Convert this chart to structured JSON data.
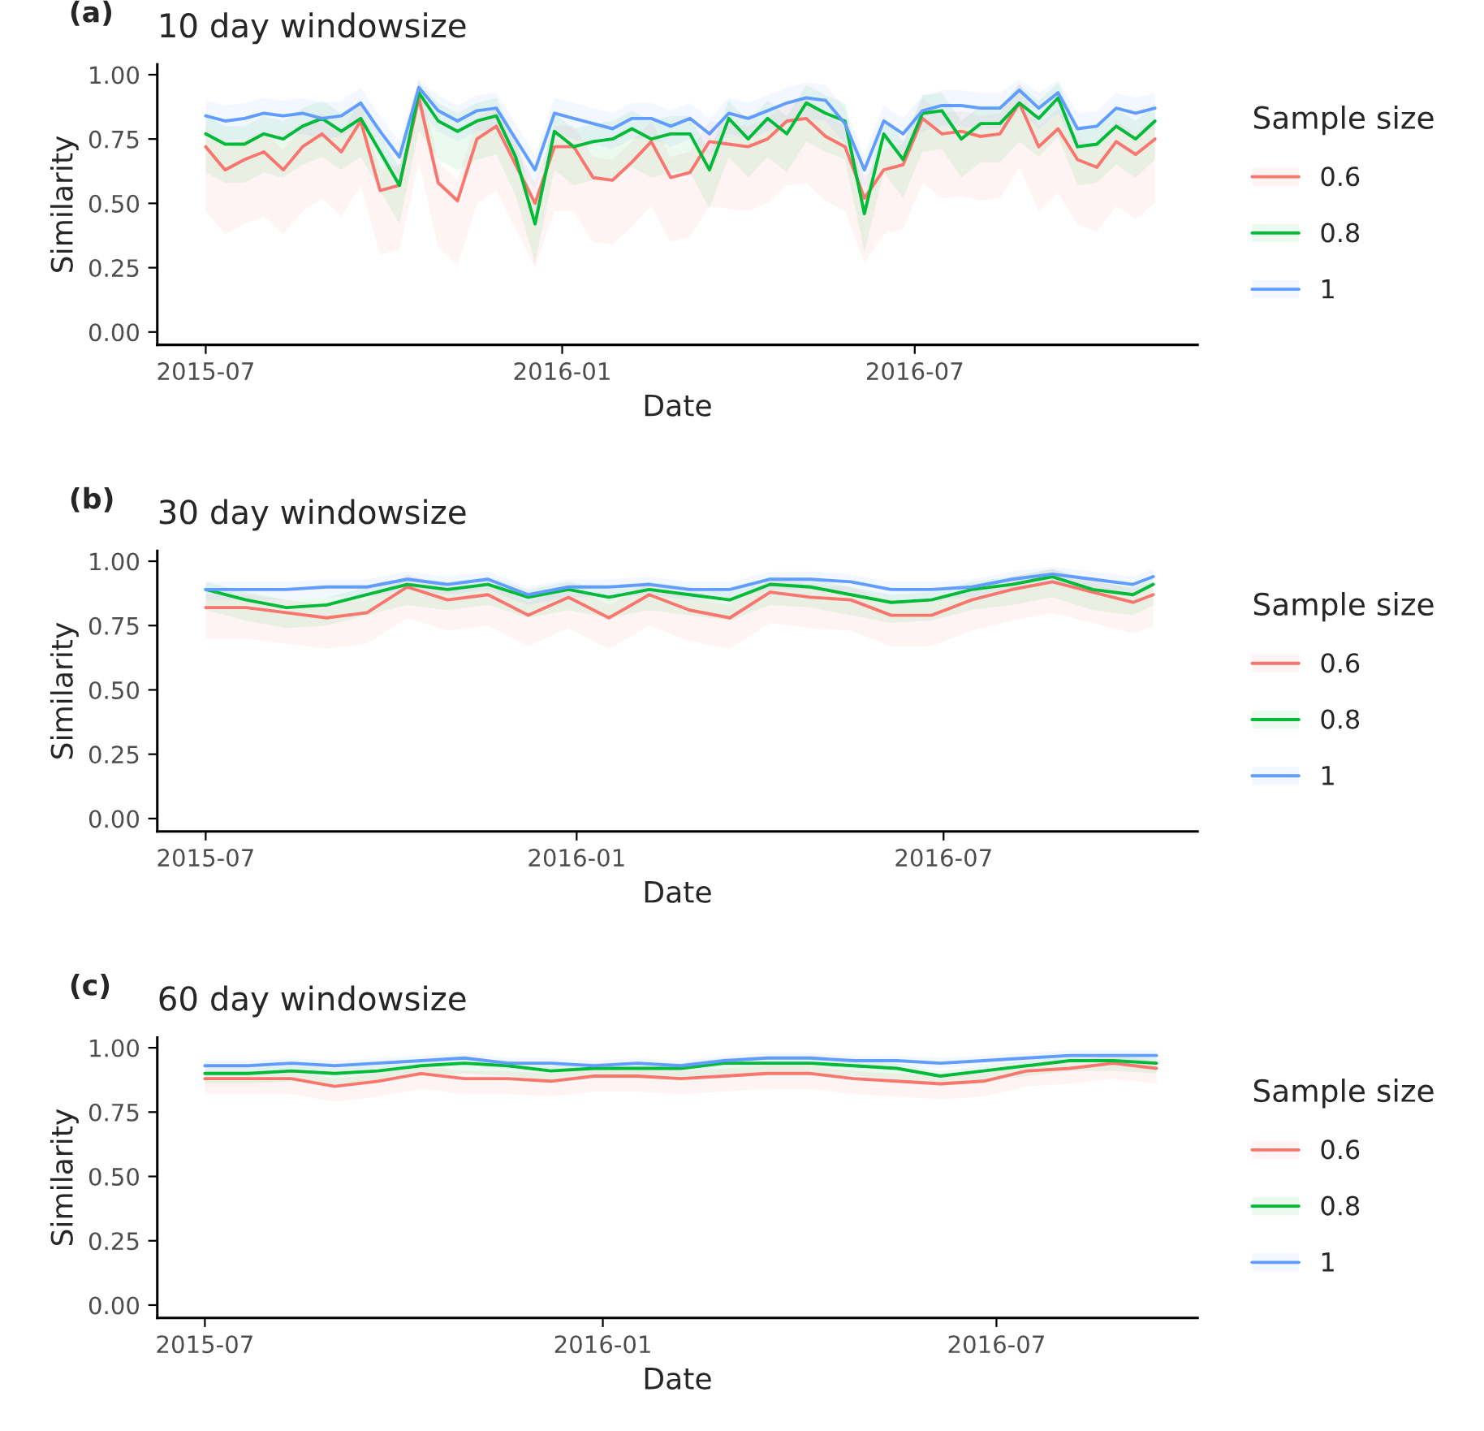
{
  "chart_data": [
    {
      "type": "line",
      "title": "10 day windowsize",
      "annotations": [
        "(a)"
      ],
      "xlabel": "Date",
      "ylabel": "Similarity",
      "legend_title": "Sample size",
      "legend": "right",
      "xlim": [
        "2015-06-06",
        "2016-11-24"
      ],
      "xticks": [
        "2015-07",
        "2016-01",
        "2016-07"
      ],
      "ylim": [
        -0.05,
        1.04
      ],
      "yticks": [
        {
          "value": 0,
          "label": "0.00"
        },
        {
          "value": 0.25,
          "label": "0.25"
        },
        {
          "value": 0.5,
          "label": "0.50"
        },
        {
          "value": 0.75,
          "label": "0.75"
        },
        {
          "value": 1,
          "label": "1.00"
        }
      ],
      "x": [
        "2015-07-01",
        "2015-07-11",
        "2015-07-21",
        "2015-07-31",
        "2015-08-10",
        "2015-08-20",
        "2015-08-30",
        "2015-09-09",
        "2015-09-19",
        "2015-09-29",
        "2015-10-09",
        "2015-10-19",
        "2015-10-29",
        "2015-11-08",
        "2015-11-18",
        "2015-11-28",
        "2015-12-08",
        "2015-12-18",
        "2015-12-28",
        "2016-01-07",
        "2016-01-17",
        "2016-01-27",
        "2016-02-06",
        "2016-02-16",
        "2016-02-26",
        "2016-03-07",
        "2016-03-17",
        "2016-03-27",
        "2016-04-06",
        "2016-04-16",
        "2016-04-26",
        "2016-05-06",
        "2016-05-16",
        "2016-05-26",
        "2016-06-05",
        "2016-06-15",
        "2016-06-25",
        "2016-07-05",
        "2016-07-15",
        "2016-07-25",
        "2016-08-04",
        "2016-08-14",
        "2016-08-24",
        "2016-09-03",
        "2016-09-13",
        "2016-09-23",
        "2016-10-03",
        "2016-10-13",
        "2016-10-23",
        "2016-11-02"
      ],
      "series": [
        {
          "name": "0.6",
          "color": "#f8766d",
          "values": [
            0.72,
            0.63,
            0.67,
            0.7,
            0.63,
            0.72,
            0.77,
            0.7,
            0.82,
            0.55,
            0.57,
            0.91,
            0.58,
            0.51,
            0.75,
            0.8,
            0.65,
            0.5,
            0.72,
            0.72,
            0.6,
            0.59,
            0.66,
            0.74,
            0.6,
            0.62,
            0.74,
            0.73,
            0.72,
            0.75,
            0.82,
            0.83,
            0.76,
            0.72,
            0.52,
            0.63,
            0.65,
            0.83,
            0.77,
            0.78,
            0.76,
            0.77,
            0.89,
            0.72,
            0.79,
            0.67,
            0.64,
            0.74,
            0.69,
            0.75
          ],
          "upper": [
            0.8,
            0.71,
            0.75,
            0.78,
            0.71,
            0.8,
            0.85,
            0.78,
            0.9,
            0.63,
            0.65,
            0.99,
            0.66,
            0.59,
            0.83,
            0.88,
            0.73,
            0.58,
            0.8,
            0.8,
            0.68,
            0.67,
            0.74,
            0.82,
            0.68,
            0.7,
            0.82,
            0.81,
            0.8,
            0.83,
            0.9,
            0.91,
            0.84,
            0.8,
            0.6,
            0.71,
            0.73,
            0.91,
            0.85,
            0.86,
            0.84,
            0.85,
            0.97,
            0.8,
            0.87,
            0.75,
            0.72,
            0.82,
            0.77,
            0.83
          ],
          "lower": [
            0.47,
            0.38,
            0.42,
            0.45,
            0.38,
            0.47,
            0.52,
            0.45,
            0.57,
            0.3,
            0.32,
            0.66,
            0.33,
            0.26,
            0.5,
            0.55,
            0.4,
            0.25,
            0.47,
            0.47,
            0.35,
            0.34,
            0.41,
            0.49,
            0.35,
            0.37,
            0.49,
            0.48,
            0.47,
            0.5,
            0.57,
            0.58,
            0.51,
            0.47,
            0.27,
            0.38,
            0.4,
            0.58,
            0.52,
            0.53,
            0.51,
            0.52,
            0.64,
            0.47,
            0.54,
            0.42,
            0.39,
            0.49,
            0.44,
            0.5
          ]
        },
        {
          "name": "0.8",
          "color": "#00ba38",
          "values": [
            0.77,
            0.73,
            0.73,
            0.77,
            0.75,
            0.8,
            0.83,
            0.78,
            0.83,
            0.7,
            0.57,
            0.93,
            0.82,
            0.78,
            0.82,
            0.84,
            0.68,
            0.42,
            0.78,
            0.72,
            0.74,
            0.75,
            0.79,
            0.75,
            0.77,
            0.77,
            0.63,
            0.83,
            0.75,
            0.83,
            0.77,
            0.89,
            0.85,
            0.82,
            0.46,
            0.77,
            0.67,
            0.85,
            0.86,
            0.75,
            0.81,
            0.81,
            0.89,
            0.83,
            0.91,
            0.72,
            0.73,
            0.8,
            0.75,
            0.82
          ],
          "upper": [
            0.84,
            0.8,
            0.8,
            0.84,
            0.82,
            0.87,
            0.9,
            0.85,
            0.9,
            0.77,
            0.64,
            0.97,
            0.89,
            0.85,
            0.89,
            0.91,
            0.75,
            0.49,
            0.85,
            0.79,
            0.81,
            0.82,
            0.86,
            0.82,
            0.84,
            0.84,
            0.7,
            0.9,
            0.82,
            0.9,
            0.84,
            0.96,
            0.92,
            0.89,
            0.53,
            0.84,
            0.74,
            0.92,
            0.93,
            0.82,
            0.88,
            0.88,
            0.96,
            0.9,
            0.97,
            0.79,
            0.8,
            0.87,
            0.82,
            0.89
          ],
          "lower": [
            0.62,
            0.58,
            0.58,
            0.62,
            0.6,
            0.65,
            0.68,
            0.63,
            0.68,
            0.55,
            0.42,
            0.78,
            0.67,
            0.63,
            0.67,
            0.69,
            0.53,
            0.27,
            0.63,
            0.57,
            0.59,
            0.6,
            0.64,
            0.6,
            0.62,
            0.62,
            0.48,
            0.68,
            0.6,
            0.68,
            0.62,
            0.74,
            0.7,
            0.67,
            0.31,
            0.62,
            0.52,
            0.7,
            0.71,
            0.6,
            0.66,
            0.66,
            0.74,
            0.68,
            0.76,
            0.57,
            0.58,
            0.65,
            0.6,
            0.67
          ]
        },
        {
          "name": "1",
          "color": "#619cff",
          "values": [
            0.84,
            0.82,
            0.83,
            0.85,
            0.84,
            0.85,
            0.83,
            0.84,
            0.89,
            0.78,
            0.68,
            0.95,
            0.86,
            0.82,
            0.86,
            0.87,
            0.75,
            0.63,
            0.85,
            0.83,
            0.81,
            0.79,
            0.83,
            0.83,
            0.8,
            0.83,
            0.77,
            0.85,
            0.83,
            0.86,
            0.89,
            0.91,
            0.9,
            0.81,
            0.63,
            0.82,
            0.77,
            0.86,
            0.88,
            0.88,
            0.87,
            0.87,
            0.94,
            0.87,
            0.93,
            0.79,
            0.8,
            0.87,
            0.85,
            0.87
          ],
          "upper": [
            0.9,
            0.88,
            0.89,
            0.91,
            0.9,
            0.91,
            0.89,
            0.9,
            0.95,
            0.84,
            0.74,
            0.98,
            0.92,
            0.88,
            0.92,
            0.93,
            0.81,
            0.69,
            0.91,
            0.89,
            0.87,
            0.85,
            0.89,
            0.89,
            0.86,
            0.89,
            0.83,
            0.91,
            0.89,
            0.92,
            0.95,
            0.97,
            0.96,
            0.87,
            0.69,
            0.88,
            0.83,
            0.92,
            0.94,
            0.94,
            0.93,
            0.93,
            0.98,
            0.93,
            0.98,
            0.85,
            0.86,
            0.93,
            0.91,
            0.93
          ],
          "lower": [
            0.76,
            0.74,
            0.75,
            0.77,
            0.76,
            0.77,
            0.75,
            0.76,
            0.81,
            0.7,
            0.6,
            0.87,
            0.78,
            0.74,
            0.78,
            0.79,
            0.67,
            0.55,
            0.77,
            0.75,
            0.73,
            0.71,
            0.75,
            0.75,
            0.72,
            0.75,
            0.69,
            0.77,
            0.75,
            0.78,
            0.81,
            0.83,
            0.82,
            0.73,
            0.55,
            0.74,
            0.69,
            0.78,
            0.8,
            0.8,
            0.79,
            0.79,
            0.86,
            0.79,
            0.85,
            0.71,
            0.72,
            0.79,
            0.77,
            0.79
          ]
        }
      ]
    },
    {
      "type": "line",
      "title": "30 day windowsize",
      "annotations": [
        "(b)"
      ],
      "xlabel": "Date",
      "ylabel": "Similarity",
      "legend_title": "Sample size",
      "legend": "right",
      "xlim": [
        "2015-06-07",
        "2016-11-04"
      ],
      "xticks": [
        "2015-07",
        "2016-01",
        "2016-07"
      ],
      "ylim": [
        -0.05,
        1.04
      ],
      "yticks": [
        {
          "value": 0,
          "label": "0.00"
        },
        {
          "value": 0.25,
          "label": "0.25"
        },
        {
          "value": 0.5,
          "label": "0.50"
        },
        {
          "value": 0.75,
          "label": "0.75"
        },
        {
          "value": 1,
          "label": "1.00"
        }
      ],
      "x": [
        "2015-07-01",
        "2015-07-21",
        "2015-08-10",
        "2015-08-30",
        "2015-09-19",
        "2015-10-09",
        "2015-10-29",
        "2015-11-18",
        "2015-12-08",
        "2015-12-28",
        "2016-01-17",
        "2016-02-06",
        "2016-02-26",
        "2016-03-17",
        "2016-04-06",
        "2016-04-26",
        "2016-05-16",
        "2016-06-05",
        "2016-06-25",
        "2016-07-15",
        "2016-08-04",
        "2016-08-24",
        "2016-09-13",
        "2016-10-03",
        "2016-10-13"
      ],
      "series": [
        {
          "name": "0.6",
          "color": "#f8766d",
          "values": [
            0.82,
            0.82,
            0.8,
            0.78,
            0.8,
            0.9,
            0.85,
            0.87,
            0.79,
            0.86,
            0.78,
            0.87,
            0.81,
            0.78,
            0.88,
            0.86,
            0.85,
            0.79,
            0.79,
            0.85,
            0.89,
            0.92,
            0.88,
            0.84,
            0.87
          ],
          "upper": [
            0.87,
            0.87,
            0.85,
            0.83,
            0.85,
            0.95,
            0.9,
            0.92,
            0.84,
            0.91,
            0.83,
            0.92,
            0.86,
            0.83,
            0.93,
            0.91,
            0.9,
            0.84,
            0.84,
            0.9,
            0.94,
            0.97,
            0.93,
            0.89,
            0.92
          ],
          "lower": [
            0.7,
            0.7,
            0.68,
            0.66,
            0.68,
            0.78,
            0.73,
            0.75,
            0.67,
            0.74,
            0.66,
            0.75,
            0.69,
            0.66,
            0.76,
            0.74,
            0.73,
            0.67,
            0.67,
            0.73,
            0.77,
            0.8,
            0.76,
            0.72,
            0.75
          ]
        },
        {
          "name": "0.8",
          "color": "#00ba38",
          "values": [
            0.89,
            0.85,
            0.82,
            0.83,
            0.87,
            0.91,
            0.89,
            0.91,
            0.86,
            0.89,
            0.86,
            0.89,
            0.87,
            0.85,
            0.91,
            0.9,
            0.87,
            0.84,
            0.85,
            0.89,
            0.91,
            0.94,
            0.89,
            0.87,
            0.91
          ],
          "upper": [
            0.92,
            0.88,
            0.85,
            0.86,
            0.9,
            0.94,
            0.92,
            0.94,
            0.89,
            0.92,
            0.89,
            0.92,
            0.9,
            0.88,
            0.94,
            0.93,
            0.9,
            0.87,
            0.88,
            0.92,
            0.94,
            0.97,
            0.92,
            0.9,
            0.94
          ],
          "lower": [
            0.81,
            0.77,
            0.74,
            0.75,
            0.79,
            0.83,
            0.81,
            0.83,
            0.78,
            0.81,
            0.78,
            0.81,
            0.79,
            0.77,
            0.83,
            0.82,
            0.79,
            0.76,
            0.77,
            0.81,
            0.83,
            0.86,
            0.81,
            0.79,
            0.83
          ]
        },
        {
          "name": "1",
          "color": "#619cff",
          "values": [
            0.89,
            0.89,
            0.89,
            0.9,
            0.9,
            0.93,
            0.91,
            0.93,
            0.87,
            0.9,
            0.9,
            0.91,
            0.89,
            0.89,
            0.93,
            0.93,
            0.92,
            0.89,
            0.89,
            0.9,
            0.93,
            0.95,
            0.93,
            0.91,
            0.94
          ],
          "upper": [
            0.92,
            0.92,
            0.92,
            0.93,
            0.93,
            0.96,
            0.94,
            0.96,
            0.9,
            0.93,
            0.93,
            0.94,
            0.92,
            0.92,
            0.96,
            0.96,
            0.95,
            0.92,
            0.92,
            0.93,
            0.96,
            0.98,
            0.96,
            0.94,
            0.97
          ],
          "lower": [
            0.85,
            0.85,
            0.85,
            0.86,
            0.86,
            0.89,
            0.87,
            0.89,
            0.83,
            0.86,
            0.86,
            0.87,
            0.85,
            0.85,
            0.89,
            0.89,
            0.88,
            0.85,
            0.85,
            0.86,
            0.89,
            0.91,
            0.89,
            0.87,
            0.9
          ]
        }
      ]
    },
    {
      "type": "line",
      "title": "60 day windowsize",
      "annotations": [
        "(c)"
      ],
      "xlabel": "Date",
      "ylabel": "Similarity",
      "legend_title": "Sample size",
      "legend": "right",
      "xlim": [
        "2015-06-09",
        "2016-10-02"
      ],
      "xticks": [
        "2015-07",
        "2016-01",
        "2016-07"
      ],
      "ylim": [
        -0.05,
        1.04
      ],
      "yticks": [
        {
          "value": 0,
          "label": "0.00"
        },
        {
          "value": 0.25,
          "label": "0.25"
        },
        {
          "value": 0.5,
          "label": "0.50"
        },
        {
          "value": 0.75,
          "label": "0.75"
        },
        {
          "value": 1,
          "label": "1.00"
        }
      ],
      "x": [
        "2015-07-01",
        "2015-07-21",
        "2015-08-10",
        "2015-08-30",
        "2015-09-19",
        "2015-10-09",
        "2015-10-29",
        "2015-11-18",
        "2015-12-08",
        "2015-12-28",
        "2016-01-17",
        "2016-02-06",
        "2016-02-26",
        "2016-03-17",
        "2016-04-06",
        "2016-04-26",
        "2016-05-16",
        "2016-06-05",
        "2016-06-25",
        "2016-07-15",
        "2016-08-04",
        "2016-08-24",
        "2016-09-13"
      ],
      "series": [
        {
          "name": "0.6",
          "color": "#f8766d",
          "values": [
            0.88,
            0.88,
            0.88,
            0.85,
            0.87,
            0.9,
            0.88,
            0.88,
            0.87,
            0.89,
            0.89,
            0.88,
            0.89,
            0.9,
            0.9,
            0.88,
            0.87,
            0.86,
            0.87,
            0.91,
            0.92,
            0.94,
            0.92
          ],
          "upper": [
            0.91,
            0.91,
            0.91,
            0.88,
            0.9,
            0.93,
            0.91,
            0.91,
            0.9,
            0.92,
            0.92,
            0.91,
            0.92,
            0.93,
            0.93,
            0.91,
            0.9,
            0.89,
            0.9,
            0.94,
            0.95,
            0.97,
            0.95
          ],
          "lower": [
            0.82,
            0.82,
            0.82,
            0.79,
            0.81,
            0.84,
            0.82,
            0.82,
            0.81,
            0.83,
            0.83,
            0.82,
            0.83,
            0.84,
            0.84,
            0.82,
            0.81,
            0.8,
            0.81,
            0.85,
            0.86,
            0.88,
            0.86
          ]
        },
        {
          "name": "0.8",
          "color": "#00ba38",
          "values": [
            0.9,
            0.9,
            0.91,
            0.9,
            0.91,
            0.93,
            0.94,
            0.93,
            0.91,
            0.92,
            0.92,
            0.92,
            0.94,
            0.94,
            0.94,
            0.93,
            0.92,
            0.89,
            0.91,
            0.93,
            0.95,
            0.95,
            0.94
          ],
          "upper": [
            0.92,
            0.92,
            0.93,
            0.92,
            0.93,
            0.95,
            0.96,
            0.95,
            0.93,
            0.94,
            0.94,
            0.94,
            0.96,
            0.96,
            0.96,
            0.95,
            0.94,
            0.91,
            0.93,
            0.95,
            0.97,
            0.97,
            0.96
          ],
          "lower": [
            0.86,
            0.86,
            0.87,
            0.86,
            0.87,
            0.89,
            0.9,
            0.89,
            0.87,
            0.88,
            0.88,
            0.88,
            0.9,
            0.9,
            0.9,
            0.89,
            0.88,
            0.85,
            0.87,
            0.89,
            0.91,
            0.91,
            0.9
          ]
        },
        {
          "name": "1",
          "color": "#619cff",
          "values": [
            0.93,
            0.93,
            0.94,
            0.93,
            0.94,
            0.95,
            0.96,
            0.94,
            0.94,
            0.93,
            0.94,
            0.93,
            0.95,
            0.96,
            0.96,
            0.95,
            0.95,
            0.94,
            0.95,
            0.96,
            0.97,
            0.97,
            0.97
          ],
          "upper": [
            0.95,
            0.95,
            0.96,
            0.95,
            0.96,
            0.97,
            0.98,
            0.96,
            0.96,
            0.95,
            0.96,
            0.95,
            0.97,
            0.98,
            0.98,
            0.97,
            0.97,
            0.96,
            0.97,
            0.98,
            0.99,
            0.99,
            0.99
          ],
          "lower": [
            0.91,
            0.91,
            0.92,
            0.91,
            0.92,
            0.93,
            0.94,
            0.92,
            0.92,
            0.91,
            0.92,
            0.91,
            0.93,
            0.94,
            0.94,
            0.93,
            0.93,
            0.92,
            0.93,
            0.94,
            0.95,
            0.95,
            0.95
          ]
        }
      ]
    }
  ]
}
